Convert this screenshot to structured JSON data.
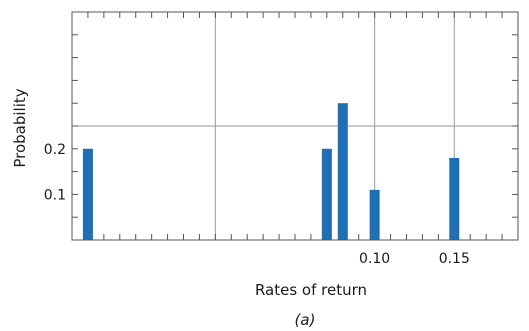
{
  "chart_data": {
    "type": "bar",
    "xlabel": "Rates of return",
    "ylabel": "Probability",
    "caption": "(a)",
    "x_ticks": [
      0.1,
      0.15
    ],
    "x_tick_labels": [
      "0.10",
      "0.15"
    ],
    "y_ticks": [
      0.1,
      0.2
    ],
    "y_tick_labels": [
      "0.1",
      "0.2"
    ],
    "xlim": [
      -0.09,
      0.19
    ],
    "ylim": [
      0,
      0.5
    ],
    "grid": true,
    "bar_color": "#1f6fb6",
    "points": [
      {
        "x": -0.08,
        "y": 0.2
      },
      {
        "x": 0.07,
        "y": 0.2
      },
      {
        "x": 0.08,
        "y": 0.3
      },
      {
        "x": 0.1,
        "y": 0.11
      },
      {
        "x": 0.15,
        "y": 0.18
      }
    ]
  }
}
